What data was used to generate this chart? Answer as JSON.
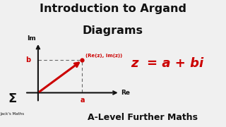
{
  "bg_color": "#f0f0f0",
  "title_line1": "Introduction to Argand",
  "title_line2": "Diagrams",
  "title_fontsize": 11.5,
  "title_color": "#111111",
  "formula": "z  = a + bi",
  "formula_color": "#cc0000",
  "formula_fontsize": 13,
  "subtitle": "A-Level Further Maths",
  "subtitle_color": "#111111",
  "subtitle_fontsize": 9,
  "sigma_color": "#111111",
  "jacks_maths": "Jack's Maths",
  "point": [
    1.0,
    1.0
  ],
  "point_label": "(Re(z), Im(z))",
  "point_label_color": "#cc0000",
  "a_label": "a",
  "b_label": "b",
  "im_label": "Im",
  "re_label": "Re",
  "arrow_color": "#cc0000",
  "dashed_color": "#666666",
  "axis_color": "#111111"
}
